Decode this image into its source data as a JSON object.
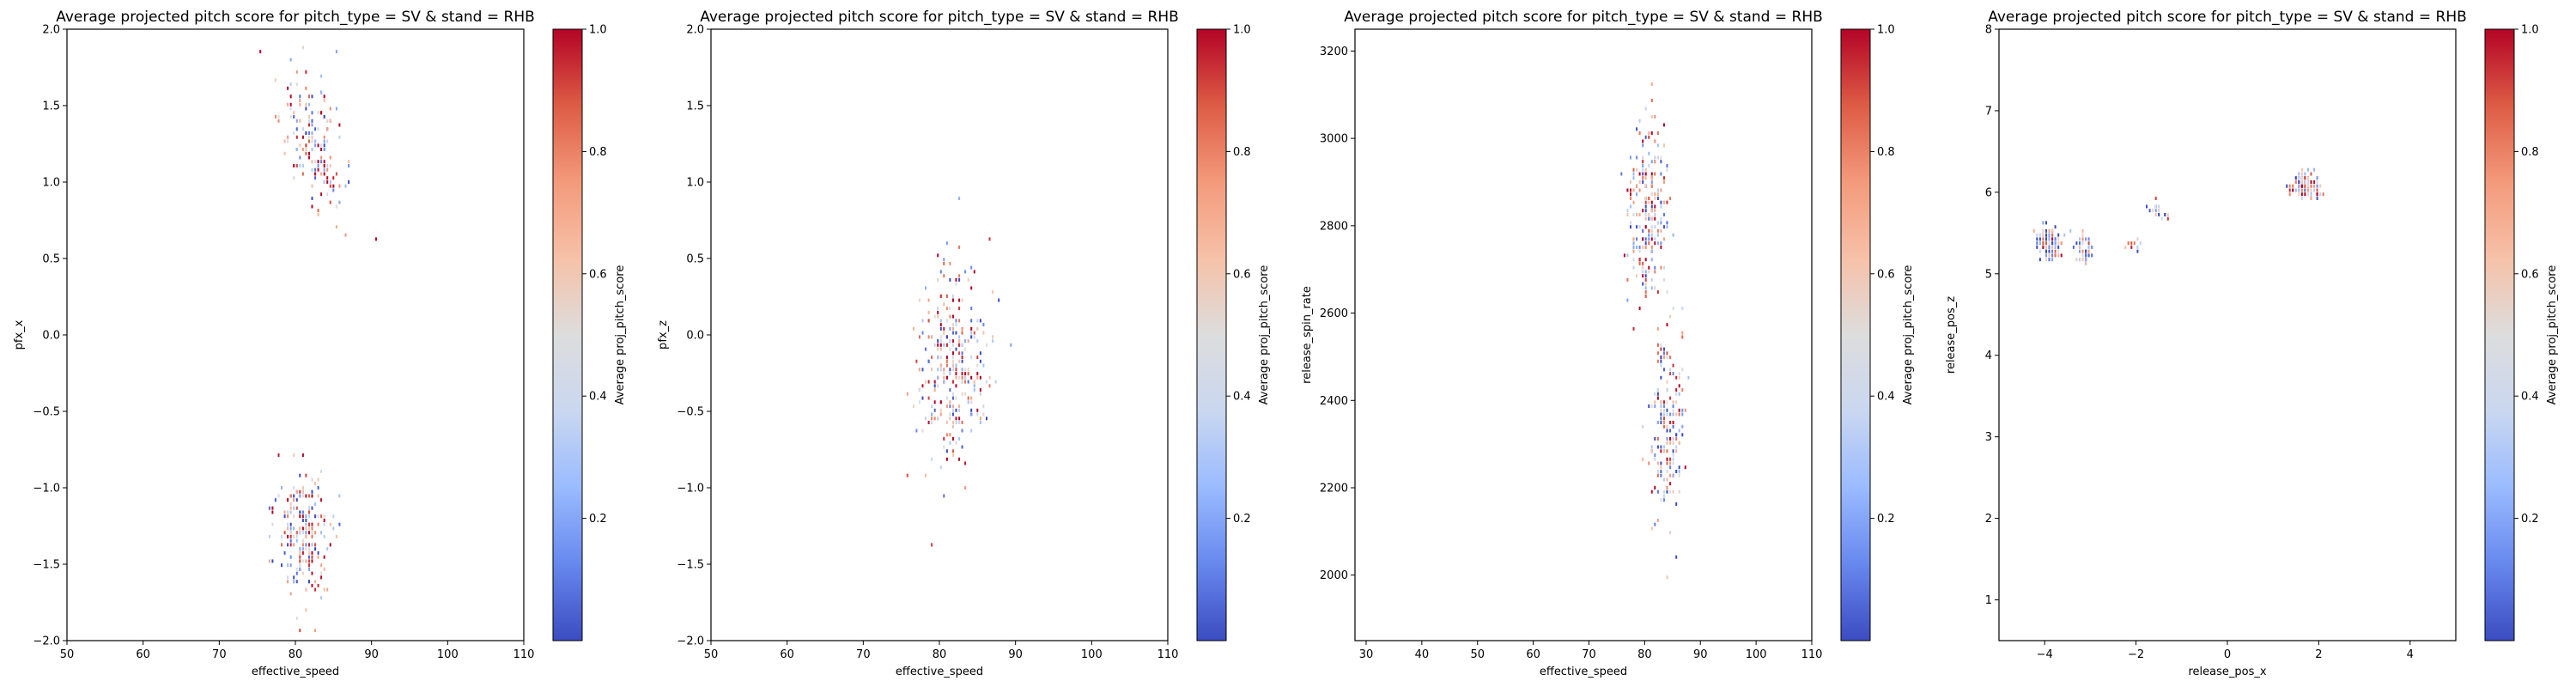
{
  "colors": {
    "colormap": [
      "#3b4cc0",
      "#6788ee",
      "#9abbff",
      "#c9d7f0",
      "#dddddd",
      "#f6c1a8",
      "#f49a7b",
      "#dd5c45",
      "#b40426"
    ],
    "axes_edge": "#000000",
    "background": "#ffffff"
  },
  "chart_data": [
    {
      "type": "heatmap",
      "title": "Average projected pitch score for pitch_type = SV & stand = RHB",
      "xlabel": "effective_speed",
      "ylabel": "pfx_x",
      "xlim": [
        50,
        110
      ],
      "ylim": [
        -2.0,
        2.0
      ],
      "xticks": [
        50,
        60,
        70,
        80,
        90,
        100,
        110
      ],
      "yticks": [
        -2.0,
        -1.5,
        -1.0,
        -0.5,
        0.0,
        0.5,
        1.0,
        1.5,
        2.0
      ],
      "xtick_labels": [
        "50",
        "60",
        "70",
        "80",
        "90",
        "100",
        "110"
      ],
      "ytick_labels": [
        "−2.0",
        "−1.5",
        "−1.0",
        "−0.5",
        "0.0",
        "0.5",
        "1.0",
        "1.5",
        "2.0"
      ],
      "colorbar": {
        "label": "Average proj_pitch_score",
        "range": [
          0,
          1
        ],
        "ticks": [
          0.2,
          0.4,
          0.6,
          0.8,
          1.0
        ],
        "tick_labels": [
          "0.2",
          "0.4",
          "0.6",
          "0.8",
          "1.0"
        ]
      },
      "grid": false,
      "clusters": [
        {
          "cx": 82.5,
          "cy": 1.25,
          "sx": 2.2,
          "sy": 0.22,
          "slope": -0.06,
          "n": 170,
          "mean": 0.55
        },
        {
          "cx": 81.0,
          "cy": -1.3,
          "sx": 2.0,
          "sy": 0.22,
          "slope": 0.0,
          "n": 220,
          "mean": 0.52
        }
      ],
      "seed": 11
    },
    {
      "type": "heatmap",
      "title": "Average projected pitch score for pitch_type = SV & stand = RHB",
      "xlabel": "effective_speed",
      "ylabel": "pfx_z",
      "xlim": [
        50,
        110
      ],
      "ylim": [
        -2.0,
        2.0
      ],
      "xticks": [
        50,
        60,
        70,
        80,
        90,
        100,
        110
      ],
      "yticks": [
        -2.0,
        -1.5,
        -1.0,
        -0.5,
        0.0,
        0.5,
        1.0,
        1.5,
        2.0
      ],
      "xtick_labels": [
        "50",
        "60",
        "70",
        "80",
        "90",
        "100",
        "110"
      ],
      "ytick_labels": [
        "−2.0",
        "−1.5",
        "−1.0",
        "−0.5",
        "0.0",
        "0.5",
        "1.0",
        "1.5",
        "2.0"
      ],
      "colorbar": {
        "label": "Average proj_pitch_score",
        "range": [
          0,
          1
        ],
        "ticks": [
          0.2,
          0.4,
          0.6,
          0.8,
          1.0
        ],
        "tick_labels": [
          "0.2",
          "0.4",
          "0.6",
          "0.8",
          "1.0"
        ]
      },
      "grid": false,
      "clusters": [
        {
          "cx": 82.0,
          "cy": -0.2,
          "sx": 2.3,
          "sy": 0.32,
          "slope": 0.0,
          "n": 320,
          "mean": 0.55
        }
      ],
      "seed": 23
    },
    {
      "type": "heatmap",
      "title": "Average projected pitch score for pitch_type = SV & stand = RHB",
      "xlabel": "effective_speed",
      "ylabel": "release_spin_rate",
      "xlim": [
        28,
        110
      ],
      "ylim": [
        1850,
        3250
      ],
      "xticks": [
        30,
        40,
        50,
        60,
        70,
        80,
        90,
        100,
        110
      ],
      "yticks": [
        2000,
        2200,
        2400,
        2600,
        2800,
        3000,
        3200
      ],
      "xtick_labels": [
        "30",
        "40",
        "50",
        "60",
        "70",
        "80",
        "90",
        "100",
        "110"
      ],
      "ytick_labels": [
        "2000",
        "2200",
        "2400",
        "2600",
        "2800",
        "3000",
        "3200"
      ],
      "colorbar": {
        "label": "Average proj_pitch_score",
        "range": [
          0,
          1
        ],
        "ticks": [
          0.2,
          0.4,
          0.6,
          0.8,
          1.0
        ],
        "tick_labels": [
          "0.2",
          "0.4",
          "0.6",
          "0.8",
          "1.0"
        ]
      },
      "grid": false,
      "clusters": [
        {
          "cx": 80.5,
          "cy": 2840,
          "sx": 1.8,
          "sy": 95,
          "slope": 0.0,
          "n": 240,
          "mean": 0.56
        },
        {
          "cx": 84.0,
          "cy": 2330,
          "sx": 1.5,
          "sy": 115,
          "slope": 0.0,
          "n": 190,
          "mean": 0.5
        }
      ],
      "seed": 37
    },
    {
      "type": "heatmap",
      "title": "Average projected pitch score for pitch_type = SV & stand = RHB",
      "xlabel": "release_pos_x",
      "ylabel": "release_pos_z",
      "xlim": [
        -5,
        5
      ],
      "ylim": [
        0.5,
        8.0
      ],
      "xticks": [
        -4,
        -2,
        0,
        2,
        4
      ],
      "yticks": [
        1,
        2,
        3,
        4,
        5,
        6,
        7,
        8
      ],
      "xtick_labels": [
        "−4",
        "−2",
        "0",
        "2",
        "4"
      ],
      "ytick_labels": [
        "1",
        "2",
        "3",
        "4",
        "5",
        "6",
        "7",
        "8"
      ],
      "colorbar": {
        "label": "Average proj_pitch_score",
        "range": [
          0,
          1
        ],
        "ticks": [
          0.2,
          0.4,
          0.6,
          0.8,
          1.0
        ],
        "tick_labels": [
          "0.2",
          "0.4",
          "0.6",
          "0.8",
          "1.0"
        ]
      },
      "grid": false,
      "clusters": [
        {
          "cx": -3.9,
          "cy": 5.38,
          "sx": 0.14,
          "sy": 0.1,
          "slope": 0.0,
          "n": 110,
          "mean": 0.35
        },
        {
          "cx": -3.15,
          "cy": 5.3,
          "sx": 0.1,
          "sy": 0.1,
          "slope": 0.0,
          "n": 50,
          "mean": 0.4
        },
        {
          "cx": -2.05,
          "cy": 5.35,
          "sx": 0.1,
          "sy": 0.03,
          "slope": 0.0,
          "n": 10,
          "mean": 0.45
        },
        {
          "cx": -1.55,
          "cy": 5.78,
          "sx": 0.12,
          "sy": 0.07,
          "slope": 0.0,
          "n": 20,
          "mean": 0.3
        },
        {
          "cx": 1.7,
          "cy": 6.08,
          "sx": 0.16,
          "sy": 0.07,
          "slope": 0.0,
          "n": 150,
          "mean": 0.65
        }
      ],
      "seed": 53
    }
  ]
}
